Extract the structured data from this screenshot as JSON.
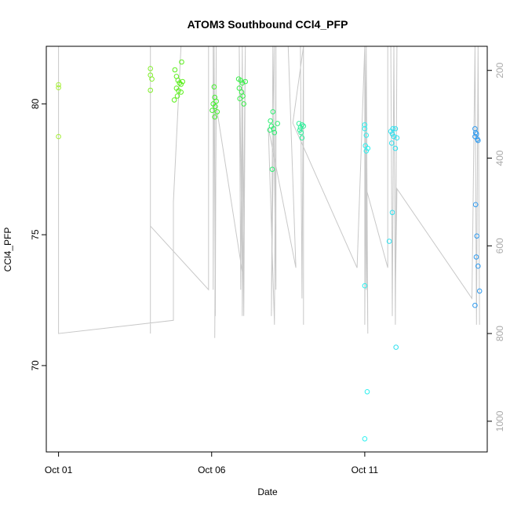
{
  "chart_data": {
    "type": "scatter",
    "title": "ATOM3 Southbound CCl4_PFP",
    "xlabel": "Date",
    "ylabel": "CCl4_PFP",
    "x_ticks": [
      {
        "x": 1.0,
        "label": "Oct 01"
      },
      {
        "x": 6.0,
        "label": "Oct 06"
      },
      {
        "x": 11.0,
        "label": "Oct 11"
      }
    ],
    "xlim": [
      0.6,
      15.0
    ],
    "ylim": [
      66.7,
      82.2
    ],
    "y_ticks": [
      70,
      75,
      80
    ],
    "y2_ticks": [
      200,
      400,
      600,
      800,
      1000
    ],
    "y2lim": [
      1070,
      145
    ],
    "points": [
      {
        "x": 1.0,
        "y": 80.73,
        "color": "#a7ef3a"
      },
      {
        "x": 1.0,
        "y": 80.62,
        "color": "#a7ef3a"
      },
      {
        "x": 1.0,
        "y": 78.75,
        "color": "#a7ef3a"
      },
      {
        "x": 4.0,
        "y": 81.35,
        "color": "#80ef2a"
      },
      {
        "x": 4.0,
        "y": 81.1,
        "color": "#80ef2a"
      },
      {
        "x": 4.05,
        "y": 80.95,
        "color": "#80ef2a"
      },
      {
        "x": 4.0,
        "y": 80.52,
        "color": "#80ef2a"
      },
      {
        "x": 4.8,
        "y": 81.3,
        "color": "#5aef1a"
      },
      {
        "x": 4.85,
        "y": 81.05,
        "color": "#5aef1a"
      },
      {
        "x": 4.9,
        "y": 80.9,
        "color": "#5aef1a"
      },
      {
        "x": 4.95,
        "y": 80.8,
        "color": "#5aef1a"
      },
      {
        "x": 5.0,
        "y": 80.75,
        "color": "#5aef1a"
      },
      {
        "x": 4.85,
        "y": 80.6,
        "color": "#5aef1a"
      },
      {
        "x": 4.92,
        "y": 80.5,
        "color": "#5aef1a"
      },
      {
        "x": 5.0,
        "y": 80.45,
        "color": "#5aef1a"
      },
      {
        "x": 4.88,
        "y": 80.3,
        "color": "#5aef1a"
      },
      {
        "x": 4.78,
        "y": 80.15,
        "color": "#5aef1a"
      },
      {
        "x": 5.02,
        "y": 81.6,
        "color": "#5aef1a"
      },
      {
        "x": 5.05,
        "y": 80.85,
        "color": "#5aef1a"
      },
      {
        "x": 6.08,
        "y": 80.65,
        "color": "#44ef2e"
      },
      {
        "x": 6.1,
        "y": 80.25,
        "color": "#44ef2e"
      },
      {
        "x": 6.15,
        "y": 80.1,
        "color": "#44ef2e"
      },
      {
        "x": 6.05,
        "y": 80.0,
        "color": "#44ef2e"
      },
      {
        "x": 6.12,
        "y": 79.9,
        "color": "#44ef2e"
      },
      {
        "x": 6.02,
        "y": 79.75,
        "color": "#44ef2e"
      },
      {
        "x": 6.18,
        "y": 79.7,
        "color": "#44ef2e"
      },
      {
        "x": 6.1,
        "y": 79.5,
        "color": "#44ef2e"
      },
      {
        "x": 6.88,
        "y": 80.95,
        "color": "#3aef4a"
      },
      {
        "x": 6.95,
        "y": 80.9,
        "color": "#3aef4a"
      },
      {
        "x": 7.0,
        "y": 80.8,
        "color": "#3aef4a"
      },
      {
        "x": 6.9,
        "y": 80.6,
        "color": "#3aef4a"
      },
      {
        "x": 6.98,
        "y": 80.45,
        "color": "#3aef4a"
      },
      {
        "x": 7.02,
        "y": 80.3,
        "color": "#3aef4a"
      },
      {
        "x": 6.92,
        "y": 80.2,
        "color": "#3aef4a"
      },
      {
        "x": 7.05,
        "y": 80.0,
        "color": "#3aef4a"
      },
      {
        "x": 7.1,
        "y": 80.85,
        "color": "#3aef4a"
      },
      {
        "x": 8.0,
        "y": 79.7,
        "color": "#2eef72"
      },
      {
        "x": 7.92,
        "y": 79.35,
        "color": "#2eef72"
      },
      {
        "x": 8.15,
        "y": 79.25,
        "color": "#2eef72"
      },
      {
        "x": 7.95,
        "y": 79.15,
        "color": "#2eef72"
      },
      {
        "x": 8.02,
        "y": 79.05,
        "color": "#2eef72"
      },
      {
        "x": 7.9,
        "y": 79.0,
        "color": "#2eef72"
      },
      {
        "x": 8.05,
        "y": 78.9,
        "color": "#2eef72"
      },
      {
        "x": 7.98,
        "y": 77.5,
        "color": "#2eef72"
      },
      {
        "x": 8.85,
        "y": 79.25,
        "color": "#2eef9a"
      },
      {
        "x": 8.95,
        "y": 79.2,
        "color": "#2eef9a"
      },
      {
        "x": 8.9,
        "y": 79.1,
        "color": "#2eef9a"
      },
      {
        "x": 9.0,
        "y": 79.15,
        "color": "#2eef9a"
      },
      {
        "x": 8.88,
        "y": 79.0,
        "color": "#2eef9a"
      },
      {
        "x": 8.92,
        "y": 78.9,
        "color": "#2eef9a"
      },
      {
        "x": 8.95,
        "y": 78.7,
        "color": "#2eef9a"
      },
      {
        "x": 11.0,
        "y": 79.2,
        "color": "#2ef0ef"
      },
      {
        "x": 11.0,
        "y": 79.05,
        "color": "#2ef0ef"
      },
      {
        "x": 11.05,
        "y": 78.8,
        "color": "#2ef0ef"
      },
      {
        "x": 11.02,
        "y": 78.4,
        "color": "#2ef0ef"
      },
      {
        "x": 11.1,
        "y": 78.3,
        "color": "#2ef0ef"
      },
      {
        "x": 11.05,
        "y": 78.2,
        "color": "#2ef0ef"
      },
      {
        "x": 11.0,
        "y": 73.05,
        "color": "#2ef0ef"
      },
      {
        "x": 11.08,
        "y": 69.0,
        "color": "#2ef0ef"
      },
      {
        "x": 11.0,
        "y": 67.2,
        "color": "#2ef0ef"
      },
      {
        "x": 11.85,
        "y": 78.95,
        "color": "#2ee0ef"
      },
      {
        "x": 11.92,
        "y": 79.05,
        "color": "#2ee0ef"
      },
      {
        "x": 12.0,
        "y": 79.05,
        "color": "#2ee0ef"
      },
      {
        "x": 11.9,
        "y": 78.85,
        "color": "#2ee0ef"
      },
      {
        "x": 11.95,
        "y": 78.75,
        "color": "#2ee0ef"
      },
      {
        "x": 12.05,
        "y": 78.7,
        "color": "#2ee0ef"
      },
      {
        "x": 11.88,
        "y": 78.5,
        "color": "#2ee0ef"
      },
      {
        "x": 12.0,
        "y": 78.3,
        "color": "#2ee0ef"
      },
      {
        "x": 11.9,
        "y": 75.85,
        "color": "#2ee0ef"
      },
      {
        "x": 11.8,
        "y": 74.75,
        "color": "#2ee0ef"
      },
      {
        "x": 12.02,
        "y": 70.7,
        "color": "#2ee0ef"
      },
      {
        "x": 14.6,
        "y": 79.05,
        "color": "#2e9aef"
      },
      {
        "x": 14.62,
        "y": 78.9,
        "color": "#2e9aef"
      },
      {
        "x": 14.65,
        "y": 78.85,
        "color": "#2e9aef"
      },
      {
        "x": 14.6,
        "y": 78.75,
        "color": "#2e9aef"
      },
      {
        "x": 14.68,
        "y": 78.65,
        "color": "#2e9aef"
      },
      {
        "x": 14.7,
        "y": 78.6,
        "color": "#2e9aef"
      },
      {
        "x": 14.62,
        "y": 76.15,
        "color": "#2e9aef"
      },
      {
        "x": 14.66,
        "y": 74.95,
        "color": "#2e9aef"
      },
      {
        "x": 14.64,
        "y": 74.15,
        "color": "#2e9aef"
      },
      {
        "x": 14.7,
        "y": 73.8,
        "color": "#2e9aef"
      },
      {
        "x": 14.75,
        "y": 72.85,
        "color": "#2e9aef"
      },
      {
        "x": 14.6,
        "y": 72.3,
        "color": "#2e9aef"
      }
    ],
    "altitude_track": [
      [
        1.0,
        145
      ],
      [
        1.0,
        800
      ],
      [
        4.75,
        770
      ],
      [
        4.75,
        500
      ],
      [
        5.0,
        145
      ],
      [
        4.0,
        145
      ],
      [
        4.0,
        525
      ],
      [
        4.0,
        800
      ],
      [
        4.0,
        555
      ],
      [
        5.9,
        700
      ],
      [
        5.9,
        145
      ],
      [
        6.05,
        145
      ],
      [
        6.05,
        700
      ],
      [
        6.08,
        145
      ],
      [
        6.12,
        760
      ],
      [
        6.15,
        145
      ],
      [
        6.1,
        810
      ],
      [
        6.15,
        280
      ],
      [
        7.0,
        660
      ],
      [
        6.9,
        145
      ],
      [
        6.95,
        700
      ],
      [
        7.0,
        145
      ],
      [
        7.05,
        760
      ],
      [
        7.1,
        145
      ],
      [
        7.0,
        760
      ],
      [
        7.0,
        145
      ],
      [
        8.05,
        145
      ],
      [
        7.95,
        760
      ],
      [
        8.0,
        145
      ],
      [
        8.1,
        700
      ],
      [
        8.1,
        145
      ],
      [
        8.05,
        780
      ],
      [
        7.85,
        330
      ],
      [
        8.75,
        650
      ],
      [
        8.5,
        145
      ],
      [
        8.9,
        145
      ],
      [
        8.95,
        720
      ],
      [
        9.0,
        145
      ],
      [
        9.0,
        780
      ],
      [
        9.0,
        145
      ],
      [
        8.65,
        320
      ],
      [
        10.75,
        650
      ],
      [
        11.0,
        145
      ],
      [
        11.0,
        780
      ],
      [
        11.05,
        145
      ],
      [
        11.1,
        800
      ],
      [
        11.0,
        145
      ],
      [
        11.05,
        700
      ],
      [
        11.05,
        470
      ],
      [
        11.75,
        650
      ],
      [
        11.75,
        145
      ],
      [
        11.85,
        145
      ],
      [
        11.9,
        760
      ],
      [
        11.95,
        145
      ],
      [
        12.0,
        780
      ],
      [
        12.05,
        145
      ],
      [
        12.0,
        720
      ],
      [
        12.05,
        470
      ],
      [
        14.5,
        720
      ],
      [
        14.6,
        145
      ],
      [
        14.65,
        780
      ],
      [
        14.7,
        145
      ],
      [
        14.75,
        780
      ],
      [
        14.7,
        145
      ]
    ]
  }
}
